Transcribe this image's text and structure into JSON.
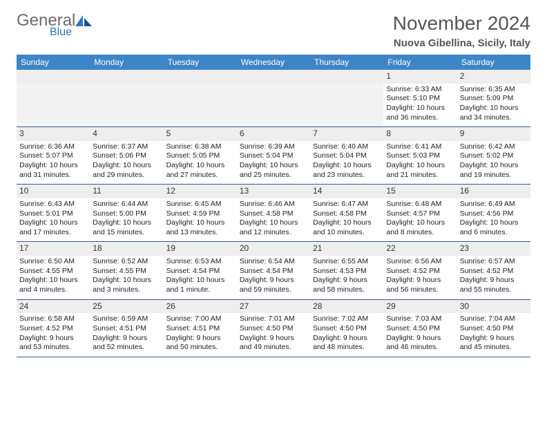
{
  "logo": {
    "text1": "General",
    "text2": "Blue"
  },
  "title": "November 2024",
  "location": "Nuova Gibellina, Sicily, Italy",
  "colors": {
    "header_bg": "#3d85c6",
    "logo_gray": "#6b6b6b",
    "logo_blue": "#2d76bb",
    "week_border": "#3d5a80",
    "daynum_bg": "#eeeeee"
  },
  "day_names": [
    "Sunday",
    "Monday",
    "Tuesday",
    "Wednesday",
    "Thursday",
    "Friday",
    "Saturday"
  ],
  "weeks": [
    [
      {
        "empty": true
      },
      {
        "empty": true
      },
      {
        "empty": true
      },
      {
        "empty": true
      },
      {
        "empty": true
      },
      {
        "num": "1",
        "sunrise": "Sunrise: 6:33 AM",
        "sunset": "Sunset: 5:10 PM",
        "daylight1": "Daylight: 10 hours",
        "daylight2": "and 36 minutes."
      },
      {
        "num": "2",
        "sunrise": "Sunrise: 6:35 AM",
        "sunset": "Sunset: 5:09 PM",
        "daylight1": "Daylight: 10 hours",
        "daylight2": "and 34 minutes."
      }
    ],
    [
      {
        "num": "3",
        "sunrise": "Sunrise: 6:36 AM",
        "sunset": "Sunset: 5:07 PM",
        "daylight1": "Daylight: 10 hours",
        "daylight2": "and 31 minutes."
      },
      {
        "num": "4",
        "sunrise": "Sunrise: 6:37 AM",
        "sunset": "Sunset: 5:06 PM",
        "daylight1": "Daylight: 10 hours",
        "daylight2": "and 29 minutes."
      },
      {
        "num": "5",
        "sunrise": "Sunrise: 6:38 AM",
        "sunset": "Sunset: 5:05 PM",
        "daylight1": "Daylight: 10 hours",
        "daylight2": "and 27 minutes."
      },
      {
        "num": "6",
        "sunrise": "Sunrise: 6:39 AM",
        "sunset": "Sunset: 5:04 PM",
        "daylight1": "Daylight: 10 hours",
        "daylight2": "and 25 minutes."
      },
      {
        "num": "7",
        "sunrise": "Sunrise: 6:40 AM",
        "sunset": "Sunset: 5:04 PM",
        "daylight1": "Daylight: 10 hours",
        "daylight2": "and 23 minutes."
      },
      {
        "num": "8",
        "sunrise": "Sunrise: 6:41 AM",
        "sunset": "Sunset: 5:03 PM",
        "daylight1": "Daylight: 10 hours",
        "daylight2": "and 21 minutes."
      },
      {
        "num": "9",
        "sunrise": "Sunrise: 6:42 AM",
        "sunset": "Sunset: 5:02 PM",
        "daylight1": "Daylight: 10 hours",
        "daylight2": "and 19 minutes."
      }
    ],
    [
      {
        "num": "10",
        "sunrise": "Sunrise: 6:43 AM",
        "sunset": "Sunset: 5:01 PM",
        "daylight1": "Daylight: 10 hours",
        "daylight2": "and 17 minutes."
      },
      {
        "num": "11",
        "sunrise": "Sunrise: 6:44 AM",
        "sunset": "Sunset: 5:00 PM",
        "daylight1": "Daylight: 10 hours",
        "daylight2": "and 15 minutes."
      },
      {
        "num": "12",
        "sunrise": "Sunrise: 6:45 AM",
        "sunset": "Sunset: 4:59 PM",
        "daylight1": "Daylight: 10 hours",
        "daylight2": "and 13 minutes."
      },
      {
        "num": "13",
        "sunrise": "Sunrise: 6:46 AM",
        "sunset": "Sunset: 4:58 PM",
        "daylight1": "Daylight: 10 hours",
        "daylight2": "and 12 minutes."
      },
      {
        "num": "14",
        "sunrise": "Sunrise: 6:47 AM",
        "sunset": "Sunset: 4:58 PM",
        "daylight1": "Daylight: 10 hours",
        "daylight2": "and 10 minutes."
      },
      {
        "num": "15",
        "sunrise": "Sunrise: 6:48 AM",
        "sunset": "Sunset: 4:57 PM",
        "daylight1": "Daylight: 10 hours",
        "daylight2": "and 8 minutes."
      },
      {
        "num": "16",
        "sunrise": "Sunrise: 6:49 AM",
        "sunset": "Sunset: 4:56 PM",
        "daylight1": "Daylight: 10 hours",
        "daylight2": "and 6 minutes."
      }
    ],
    [
      {
        "num": "17",
        "sunrise": "Sunrise: 6:50 AM",
        "sunset": "Sunset: 4:55 PM",
        "daylight1": "Daylight: 10 hours",
        "daylight2": "and 4 minutes."
      },
      {
        "num": "18",
        "sunrise": "Sunrise: 6:52 AM",
        "sunset": "Sunset: 4:55 PM",
        "daylight1": "Daylight: 10 hours",
        "daylight2": "and 3 minutes."
      },
      {
        "num": "19",
        "sunrise": "Sunrise: 6:53 AM",
        "sunset": "Sunset: 4:54 PM",
        "daylight1": "Daylight: 10 hours",
        "daylight2": "and 1 minute."
      },
      {
        "num": "20",
        "sunrise": "Sunrise: 6:54 AM",
        "sunset": "Sunset: 4:54 PM",
        "daylight1": "Daylight: 9 hours",
        "daylight2": "and 59 minutes."
      },
      {
        "num": "21",
        "sunrise": "Sunrise: 6:55 AM",
        "sunset": "Sunset: 4:53 PM",
        "daylight1": "Daylight: 9 hours",
        "daylight2": "and 58 minutes."
      },
      {
        "num": "22",
        "sunrise": "Sunrise: 6:56 AM",
        "sunset": "Sunset: 4:52 PM",
        "daylight1": "Daylight: 9 hours",
        "daylight2": "and 56 minutes."
      },
      {
        "num": "23",
        "sunrise": "Sunrise: 6:57 AM",
        "sunset": "Sunset: 4:52 PM",
        "daylight1": "Daylight: 9 hours",
        "daylight2": "and 55 minutes."
      }
    ],
    [
      {
        "num": "24",
        "sunrise": "Sunrise: 6:58 AM",
        "sunset": "Sunset: 4:52 PM",
        "daylight1": "Daylight: 9 hours",
        "daylight2": "and 53 minutes."
      },
      {
        "num": "25",
        "sunrise": "Sunrise: 6:59 AM",
        "sunset": "Sunset: 4:51 PM",
        "daylight1": "Daylight: 9 hours",
        "daylight2": "and 52 minutes."
      },
      {
        "num": "26",
        "sunrise": "Sunrise: 7:00 AM",
        "sunset": "Sunset: 4:51 PM",
        "daylight1": "Daylight: 9 hours",
        "daylight2": "and 50 minutes."
      },
      {
        "num": "27",
        "sunrise": "Sunrise: 7:01 AM",
        "sunset": "Sunset: 4:50 PM",
        "daylight1": "Daylight: 9 hours",
        "daylight2": "and 49 minutes."
      },
      {
        "num": "28",
        "sunrise": "Sunrise: 7:02 AM",
        "sunset": "Sunset: 4:50 PM",
        "daylight1": "Daylight: 9 hours",
        "daylight2": "and 48 minutes."
      },
      {
        "num": "29",
        "sunrise": "Sunrise: 7:03 AM",
        "sunset": "Sunset: 4:50 PM",
        "daylight1": "Daylight: 9 hours",
        "daylight2": "and 46 minutes."
      },
      {
        "num": "30",
        "sunrise": "Sunrise: 7:04 AM",
        "sunset": "Sunset: 4:50 PM",
        "daylight1": "Daylight: 9 hours",
        "daylight2": "and 45 minutes."
      }
    ]
  ]
}
